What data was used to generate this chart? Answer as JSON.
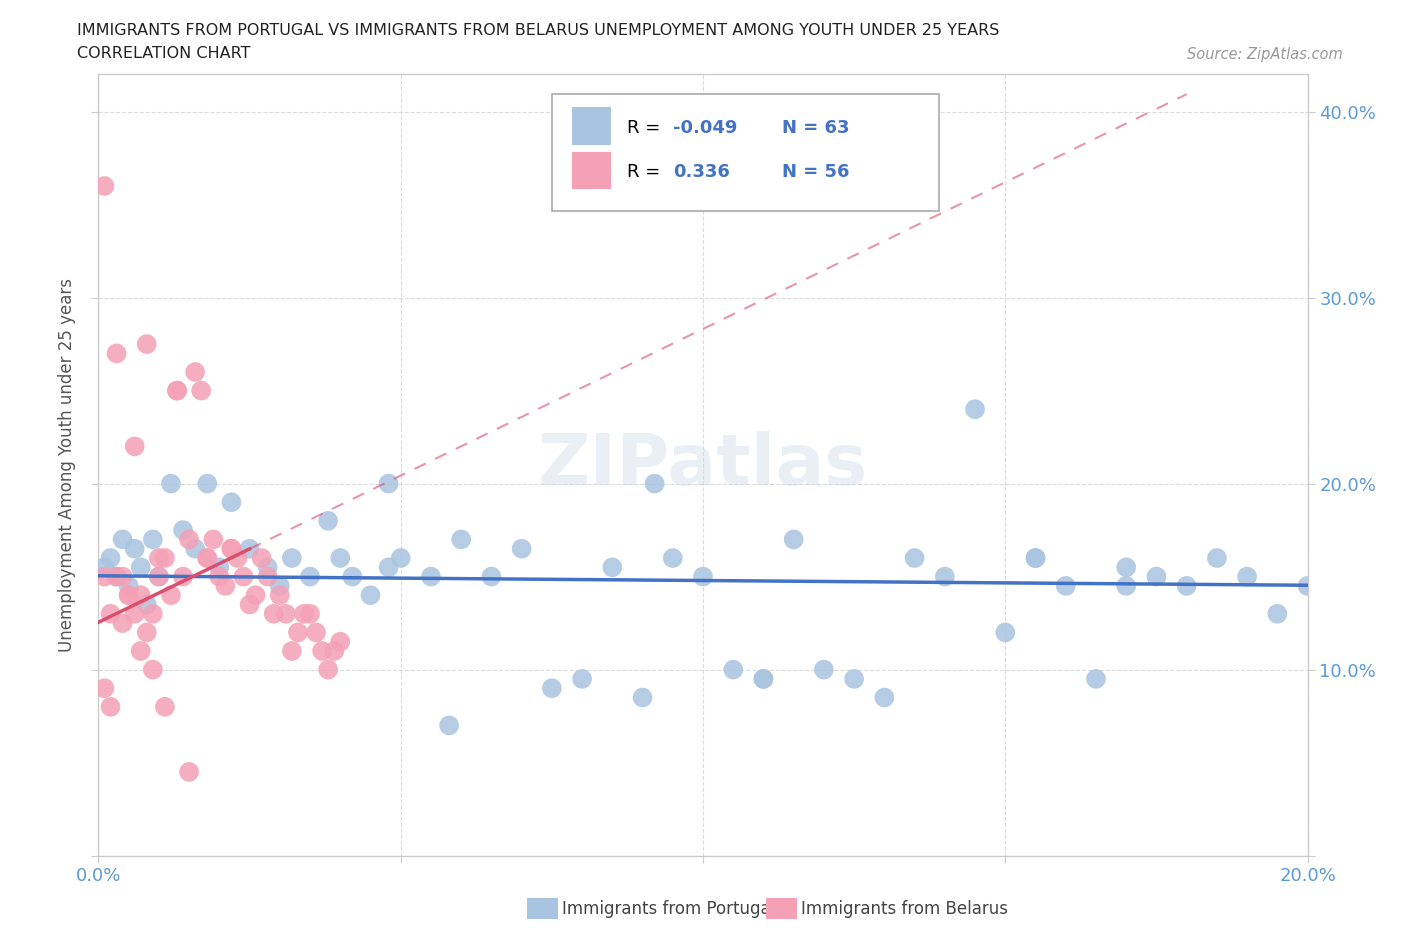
{
  "title_line1": "IMMIGRANTS FROM PORTUGAL VS IMMIGRANTS FROM BELARUS UNEMPLOYMENT AMONG YOUTH UNDER 25 YEARS",
  "title_line2": "CORRELATION CHART",
  "source_text": "Source: ZipAtlas.com",
  "ylabel": "Unemployment Among Youth under 25 years",
  "xlim": [
    0.0,
    0.2
  ],
  "ylim": [
    0.0,
    0.42
  ],
  "xtick_vals": [
    0.0,
    0.05,
    0.1,
    0.15,
    0.2
  ],
  "ytick_vals": [
    0.0,
    0.1,
    0.2,
    0.3,
    0.4
  ],
  "portugal_color": "#a8c4e0",
  "belarus_color": "#f4a0b5",
  "portugal_line_color": "#4472c4",
  "belarus_line_color": "#d94f6e",
  "watermark": "ZIPatlas",
  "portugal_scatter_x": [
    0.001,
    0.002,
    0.003,
    0.004,
    0.005,
    0.006,
    0.007,
    0.008,
    0.009,
    0.01,
    0.012,
    0.014,
    0.016,
    0.018,
    0.02,
    0.022,
    0.025,
    0.028,
    0.03,
    0.032,
    0.035,
    0.038,
    0.04,
    0.042,
    0.045,
    0.05,
    0.055,
    0.06,
    0.065,
    0.07,
    0.075,
    0.08,
    0.085,
    0.09,
    0.095,
    0.1,
    0.105,
    0.11,
    0.115,
    0.12,
    0.125,
    0.13,
    0.135,
    0.14,
    0.145,
    0.15,
    0.155,
    0.16,
    0.165,
    0.17,
    0.175,
    0.18,
    0.185,
    0.19,
    0.195,
    0.2,
    0.048,
    0.058,
    0.092,
    0.11,
    0.155,
    0.17,
    0.048
  ],
  "portugal_scatter_y": [
    0.155,
    0.16,
    0.15,
    0.17,
    0.145,
    0.165,
    0.155,
    0.135,
    0.17,
    0.15,
    0.2,
    0.175,
    0.165,
    0.2,
    0.155,
    0.19,
    0.165,
    0.155,
    0.145,
    0.16,
    0.15,
    0.18,
    0.16,
    0.15,
    0.14,
    0.16,
    0.15,
    0.17,
    0.15,
    0.165,
    0.09,
    0.095,
    0.155,
    0.085,
    0.16,
    0.15,
    0.1,
    0.095,
    0.17,
    0.1,
    0.095,
    0.085,
    0.16,
    0.15,
    0.24,
    0.12,
    0.16,
    0.145,
    0.095,
    0.155,
    0.15,
    0.145,
    0.16,
    0.15,
    0.13,
    0.145,
    0.2,
    0.07,
    0.2,
    0.095,
    0.16,
    0.145,
    0.155
  ],
  "belarus_scatter_x": [
    0.001,
    0.002,
    0.003,
    0.004,
    0.005,
    0.006,
    0.007,
    0.008,
    0.009,
    0.01,
    0.011,
    0.012,
    0.013,
    0.014,
    0.015,
    0.016,
    0.017,
    0.018,
    0.019,
    0.02,
    0.021,
    0.022,
    0.023,
    0.024,
    0.025,
    0.026,
    0.027,
    0.028,
    0.029,
    0.03,
    0.031,
    0.032,
    0.033,
    0.034,
    0.035,
    0.036,
    0.037,
    0.038,
    0.039,
    0.04,
    0.001,
    0.003,
    0.006,
    0.008,
    0.011,
    0.015,
    0.002,
    0.004,
    0.007,
    0.01,
    0.013,
    0.018,
    0.022,
    0.001,
    0.005,
    0.009
  ],
  "belarus_scatter_y": [
    0.09,
    0.13,
    0.15,
    0.125,
    0.14,
    0.13,
    0.11,
    0.12,
    0.1,
    0.15,
    0.16,
    0.14,
    0.25,
    0.15,
    0.17,
    0.26,
    0.25,
    0.16,
    0.17,
    0.15,
    0.145,
    0.165,
    0.16,
    0.15,
    0.135,
    0.14,
    0.16,
    0.15,
    0.13,
    0.14,
    0.13,
    0.11,
    0.12,
    0.13,
    0.13,
    0.12,
    0.11,
    0.1,
    0.11,
    0.115,
    0.36,
    0.27,
    0.22,
    0.275,
    0.08,
    0.045,
    0.08,
    0.15,
    0.14,
    0.16,
    0.25,
    0.16,
    0.165,
    0.15,
    0.14,
    0.13
  ]
}
